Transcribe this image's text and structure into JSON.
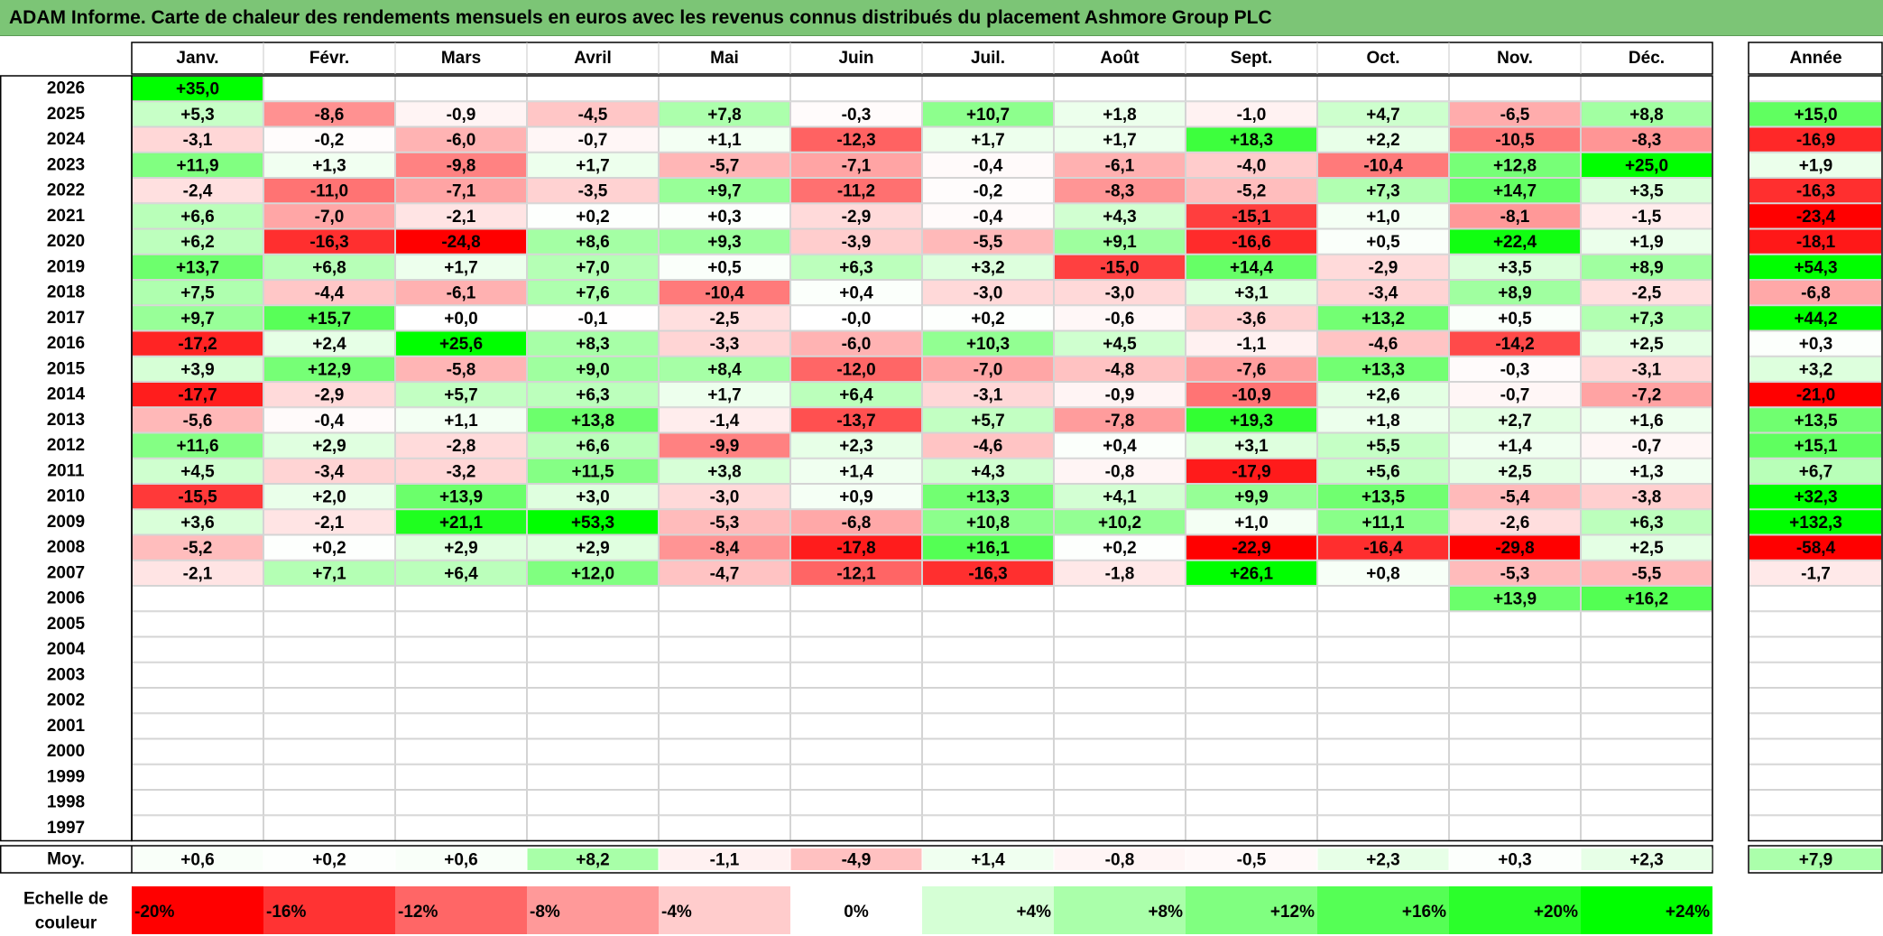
{
  "title": "ADAM Informe. Carte de chaleur des rendements mensuels en euros avec les revenus connus distribués du placement Ashmore Group PLC",
  "chart_data": {
    "type": "heatmap",
    "title": "ADAM Informe. Carte de chaleur des rendements mensuels en euros avec les revenus connus distribués du placement Ashmore Group PLC",
    "columns": [
      "Janv.",
      "Févr.",
      "Mars",
      "Avril",
      "Mai",
      "Juin",
      "Juil.",
      "Août",
      "Sept.",
      "Oct.",
      "Nov.",
      "Déc."
    ],
    "year_column_label": "Année",
    "rows": [
      {
        "year": "2026",
        "values": [
          "+35,0",
          "",
          "",
          "",
          "",
          "",
          "",
          "",
          "",
          "",
          "",
          ""
        ],
        "annual": ""
      },
      {
        "year": "2025",
        "values": [
          "+5,3",
          "-8,6",
          "-0,9",
          "-4,5",
          "+7,8",
          "-0,3",
          "+10,7",
          "+1,8",
          "-1,0",
          "+4,7",
          "-6,5",
          "+8,8"
        ],
        "annual": "+15,0"
      },
      {
        "year": "2024",
        "values": [
          "-3,1",
          "-0,2",
          "-6,0",
          "-0,7",
          "+1,1",
          "-12,3",
          "+1,7",
          "+1,7",
          "+18,3",
          "+2,2",
          "-10,5",
          "-8,3"
        ],
        "annual": "-16,9"
      },
      {
        "year": "2023",
        "values": [
          "+11,9",
          "+1,3",
          "-9,8",
          "+1,7",
          "-5,7",
          "-7,1",
          "-0,4",
          "-6,1",
          "-4,0",
          "-10,4",
          "+12,8",
          "+25,0"
        ],
        "annual": "+1,9"
      },
      {
        "year": "2022",
        "values": [
          "-2,4",
          "-11,0",
          "-7,1",
          "-3,5",
          "+9,7",
          "-11,2",
          "-0,2",
          "-8,3",
          "-5,2",
          "+7,3",
          "+14,7",
          "+3,5"
        ],
        "annual": "-16,3"
      },
      {
        "year": "2021",
        "values": [
          "+6,6",
          "-7,0",
          "-2,1",
          "+0,2",
          "+0,3",
          "-2,9",
          "-0,4",
          "+4,3",
          "-15,1",
          "+1,0",
          "-8,1",
          "-1,5"
        ],
        "annual": "-23,4"
      },
      {
        "year": "2020",
        "values": [
          "+6,2",
          "-16,3",
          "-24,8",
          "+8,6",
          "+9,3",
          "-3,9",
          "-5,5",
          "+9,1",
          "-16,6",
          "+0,5",
          "+22,4",
          "+1,9"
        ],
        "annual": "-18,1"
      },
      {
        "year": "2019",
        "values": [
          "+13,7",
          "+6,8",
          "+1,7",
          "+7,0",
          "+0,5",
          "+6,3",
          "+3,2",
          "-15,0",
          "+14,4",
          "-2,9",
          "+3,5",
          "+8,9"
        ],
        "annual": "+54,3"
      },
      {
        "year": "2018",
        "values": [
          "+7,5",
          "-4,4",
          "-6,1",
          "+7,6",
          "-10,4",
          "+0,4",
          "-3,0",
          "-3,0",
          "+3,1",
          "-3,4",
          "+8,9",
          "-2,5"
        ],
        "annual": "-6,8"
      },
      {
        "year": "2017",
        "values": [
          "+9,7",
          "+15,7",
          "+0,0",
          "-0,1",
          "-2,5",
          "-0,0",
          "+0,2",
          "-0,6",
          "-3,6",
          "+13,2",
          "+0,5",
          "+7,3"
        ],
        "annual": "+44,2"
      },
      {
        "year": "2016",
        "values": [
          "-17,2",
          "+2,4",
          "+25,6",
          "+8,3",
          "-3,3",
          "-6,0",
          "+10,3",
          "+4,5",
          "-1,1",
          "-4,6",
          "-14,2",
          "+2,5"
        ],
        "annual": "+0,3"
      },
      {
        "year": "2015",
        "values": [
          "+3,9",
          "+12,9",
          "-5,8",
          "+9,0",
          "+8,4",
          "-12,0",
          "-7,0",
          "-4,8",
          "-7,6",
          "+13,3",
          "-0,3",
          "-3,1"
        ],
        "annual": "+3,2"
      },
      {
        "year": "2014",
        "values": [
          "-17,7",
          "-2,9",
          "+5,7",
          "+6,3",
          "+1,7",
          "+6,4",
          "-3,1",
          "-0,9",
          "-10,9",
          "+2,6",
          "-0,7",
          "-7,2"
        ],
        "annual": "-21,0"
      },
      {
        "year": "2013",
        "values": [
          "-5,6",
          "-0,4",
          "+1,1",
          "+13,8",
          "-1,4",
          "-13,7",
          "+5,7",
          "-7,8",
          "+19,3",
          "+1,8",
          "+2,7",
          "+1,6"
        ],
        "annual": "+13,5"
      },
      {
        "year": "2012",
        "values": [
          "+11,6",
          "+2,9",
          "-2,8",
          "+6,6",
          "-9,9",
          "+2,3",
          "-4,6",
          "+0,4",
          "+3,1",
          "+5,5",
          "+1,4",
          "-0,7"
        ],
        "annual": "+15,1"
      },
      {
        "year": "2011",
        "values": [
          "+4,5",
          "-3,4",
          "-3,2",
          "+11,5",
          "+3,8",
          "+1,4",
          "+4,3",
          "-0,8",
          "-17,9",
          "+5,6",
          "+2,5",
          "+1,3"
        ],
        "annual": "+6,7"
      },
      {
        "year": "2010",
        "values": [
          "-15,5",
          "+2,0",
          "+13,9",
          "+3,0",
          "-3,0",
          "+0,9",
          "+13,3",
          "+4,1",
          "+9,9",
          "+13,5",
          "-5,4",
          "-3,8"
        ],
        "annual": "+32,3"
      },
      {
        "year": "2009",
        "values": [
          "+3,6",
          "-2,1",
          "+21,1",
          "+53,3",
          "-5,3",
          "-6,8",
          "+10,8",
          "+10,2",
          "+1,0",
          "+11,1",
          "-2,6",
          "+6,3"
        ],
        "annual": "+132,3"
      },
      {
        "year": "2008",
        "values": [
          "-5,2",
          "+0,2",
          "+2,9",
          "+2,9",
          "-8,4",
          "-17,8",
          "+16,1",
          "+0,2",
          "-22,9",
          "-16,4",
          "-29,8",
          "+2,5"
        ],
        "annual": "-58,4"
      },
      {
        "year": "2007",
        "values": [
          "-2,1",
          "+7,1",
          "+6,4",
          "+12,0",
          "-4,7",
          "-12,1",
          "-16,3",
          "-1,8",
          "+26,1",
          "+0,8",
          "-5,3",
          "-5,5"
        ],
        "annual": "-1,7"
      },
      {
        "year": "2006",
        "values": [
          "",
          "",
          "",
          "",
          "",
          "",
          "",
          "",
          "",
          "",
          "+13,9",
          "+16,2"
        ],
        "annual": ""
      },
      {
        "year": "2005",
        "values": [
          "",
          "",
          "",
          "",
          "",
          "",
          "",
          "",
          "",
          "",
          "",
          ""
        ],
        "annual": ""
      },
      {
        "year": "2004",
        "values": [
          "",
          "",
          "",
          "",
          "",
          "",
          "",
          "",
          "",
          "",
          "",
          ""
        ],
        "annual": ""
      },
      {
        "year": "2003",
        "values": [
          "",
          "",
          "",
          "",
          "",
          "",
          "",
          "",
          "",
          "",
          "",
          ""
        ],
        "annual": ""
      },
      {
        "year": "2002",
        "values": [
          "",
          "",
          "",
          "",
          "",
          "",
          "",
          "",
          "",
          "",
          "",
          ""
        ],
        "annual": ""
      },
      {
        "year": "2001",
        "values": [
          "",
          "",
          "",
          "",
          "",
          "",
          "",
          "",
          "",
          "",
          "",
          ""
        ],
        "annual": ""
      },
      {
        "year": "2000",
        "values": [
          "",
          "",
          "",
          "",
          "",
          "",
          "",
          "",
          "",
          "",
          "",
          ""
        ],
        "annual": ""
      },
      {
        "year": "1999",
        "values": [
          "",
          "",
          "",
          "",
          "",
          "",
          "",
          "",
          "",
          "",
          "",
          ""
        ],
        "annual": ""
      },
      {
        "year": "1998",
        "values": [
          "",
          "",
          "",
          "",
          "",
          "",
          "",
          "",
          "",
          "",
          "",
          ""
        ],
        "annual": ""
      },
      {
        "year": "1997",
        "values": [
          "",
          "",
          "",
          "",
          "",
          "",
          "",
          "",
          "",
          "",
          "",
          ""
        ],
        "annual": ""
      }
    ],
    "average": {
      "label": "Moy.",
      "values": [
        "+0,6",
        "+0,2",
        "+0,6",
        "+8,2",
        "-1,1",
        "-4,9",
        "+1,4",
        "-0,8",
        "-0,5",
        "+2,3",
        "+0,3",
        "+2,3"
      ],
      "annual": "+7,9"
    },
    "color_scale": {
      "label_line1": "Echelle de",
      "label_line2": "couleur",
      "stops": [
        {
          "label": "-20%",
          "value": -20
        },
        {
          "label": "-16%",
          "value": -16
        },
        {
          "label": "-12%",
          "value": -12
        },
        {
          "label": "-8%",
          "value": -8
        },
        {
          "label": "-4%",
          "value": -4
        },
        {
          "label": "0%",
          "value": 0
        },
        {
          "label": "+4%",
          "value": 4
        },
        {
          "label": "+8%",
          "value": 8
        },
        {
          "label": "+12%",
          "value": 12
        },
        {
          "label": "+16%",
          "value": 16
        },
        {
          "label": "+20%",
          "value": 20
        },
        {
          "label": "+24%",
          "value": 24
        }
      ]
    },
    "colors": {
      "negative": "#ff0000",
      "positive": "#00ff00",
      "neutral": "#ffffff",
      "title_bar": "#7cc576"
    }
  }
}
